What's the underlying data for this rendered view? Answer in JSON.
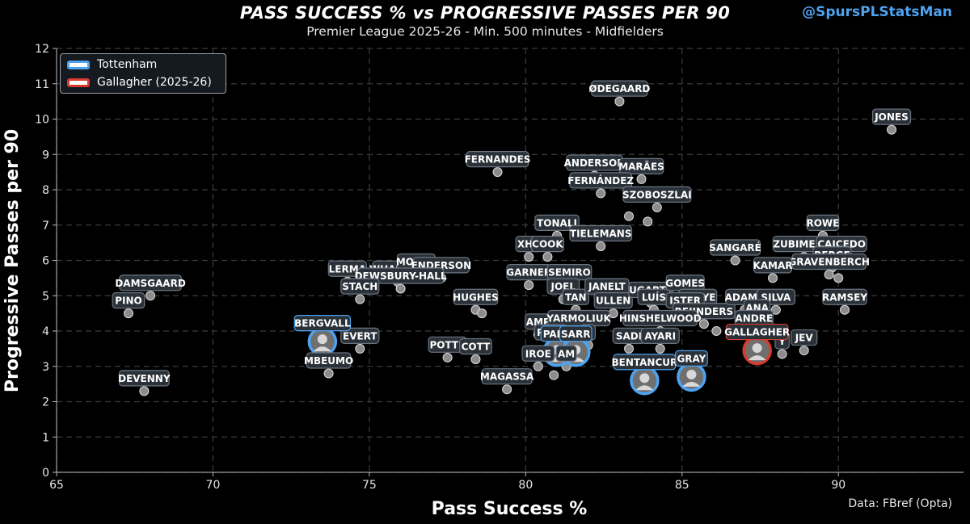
{
  "header": {
    "title": "PASS SUCCESS % vs PROGRESSIVE PASSES PER 90",
    "subtitle": "Premier League 2025-26 - Min. 500 minutes - Midfielders",
    "handle": "@SpursPLStatsMan",
    "source": "Data: FBref (Opta)"
  },
  "legend": [
    {
      "label": "Tottenham",
      "color": "#4da3f0"
    },
    {
      "label": "Gallagher (2025-26)",
      "color": "#d63b30"
    }
  ],
  "colors": {
    "background": "#000000",
    "point": "#8c8c8c",
    "tottenham": "#4da3f0",
    "gallagher": "#d63b30",
    "label_bg": "#2b3138"
  },
  "chart_data": {
    "type": "scatter",
    "title": "PASS SUCCESS % vs PROGRESSIVE PASSES PER 90",
    "subtitle": "Premier League 2025-26 - Min. 500 minutes - Midfielders",
    "xlabel": "Pass Success %",
    "ylabel": "Progressive Passes per 90",
    "xlim": [
      65,
      94
    ],
    "ylim": [
      0,
      12
    ],
    "xticks": [
      65,
      70,
      75,
      80,
      85,
      90
    ],
    "yticks": [
      0,
      1,
      2,
      3,
      4,
      5,
      6,
      7,
      8,
      9,
      10,
      11,
      12
    ],
    "grid": true,
    "legend_position": "top-left",
    "points": [
      {
        "label": "ØDEGAARD",
        "x": 83.0,
        "y": 10.5
      },
      {
        "label": "JONES",
        "x": 91.7,
        "y": 9.7
      },
      {
        "label": "FERNANDES",
        "x": 79.1,
        "y": 8.5
      },
      {
        "label": "ANDERSON",
        "x": 82.2,
        "y": 8.4
      },
      {
        "label": "MARÃES",
        "x": 83.7,
        "y": 8.3
      },
      {
        "label": "FERNÁNDEZ",
        "x": 82.4,
        "y": 7.9
      },
      {
        "label": "SZOBOSZLAI",
        "x": 84.2,
        "y": 7.5
      },
      {
        "label": "",
        "x": 83.3,
        "y": 7.25
      },
      {
        "label": "",
        "x": 83.9,
        "y": 7.1
      },
      {
        "label": "TONALI",
        "x": 81.0,
        "y": 6.7
      },
      {
        "label": "TIELEMANS",
        "x": 82.4,
        "y": 6.4
      },
      {
        "label": "XHA",
        "x": 80.1,
        "y": 6.1
      },
      {
        "label": "COOK",
        "x": 80.7,
        "y": 6.1
      },
      {
        "label": "ROWE",
        "x": 89.5,
        "y": 6.7
      },
      {
        "label": "SANGARÉ",
        "x": 86.7,
        "y": 6.0
      },
      {
        "label": "ZUBIMENDI",
        "x": 88.9,
        "y": 6.1
      },
      {
        "label": "CAICEDO",
        "x": 90.1,
        "y": 6.1
      },
      {
        "label": "BERGE",
        "x": 89.8,
        "y": 5.8
      },
      {
        "label": "GRAVENBERCH",
        "x": 89.7,
        "y": 5.6
      },
      {
        "label": "KAMAR",
        "x": 87.9,
        "y": 5.5
      },
      {
        "label": "",
        "x": 90.0,
        "y": 5.5
      },
      {
        "label": "WHARTON",
        "x": 75.9,
        "y": 5.4
      },
      {
        "label": "MOUNT",
        "x": 76.5,
        "y": 5.6
      },
      {
        "label": "LERMA",
        "x": 74.3,
        "y": 5.4
      },
      {
        "label": "ENDERSON",
        "x": 77.3,
        "y": 5.5
      },
      {
        "label": "DEWSBURY-HALL",
        "x": 76.0,
        "y": 5.2
      },
      {
        "label": "STACH",
        "x": 74.7,
        "y": 4.9
      },
      {
        "label": "GARNER",
        "x": 80.1,
        "y": 5.3
      },
      {
        "label": "SEMIRO",
        "x": 81.4,
        "y": 5.3
      },
      {
        "label": "DAMSGAARD",
        "x": 68.0,
        "y": 5.0
      },
      {
        "label": "PINO",
        "x": 67.3,
        "y": 4.5
      },
      {
        "label": "HUGHES",
        "x": 78.4,
        "y": 4.6
      },
      {
        "label": "",
        "x": 78.6,
        "y": 4.5
      },
      {
        "label": "JOEL",
        "x": 81.2,
        "y": 4.9
      },
      {
        "label": "TAN",
        "x": 81.6,
        "y": 4.6
      },
      {
        "label": "JANELT",
        "x": 82.6,
        "y": 4.9
      },
      {
        "label": "ULLEN",
        "x": 82.8,
        "y": 4.5
      },
      {
        "label": "UGARTE",
        "x": 84.0,
        "y": 4.8
      },
      {
        "label": "LUÍS",
        "x": 84.1,
        "y": 4.6
      },
      {
        "label": "GOMES",
        "x": 85.1,
        "y": 5.0
      },
      {
        "label": "GUEYE",
        "x": 85.5,
        "y": 4.6
      },
      {
        "label": "ISTER",
        "x": 85.1,
        "y": 4.5
      },
      {
        "label": "REIJNDERS",
        "x": 85.7,
        "y": 4.2
      },
      {
        "label": "ADAMS",
        "x": 87.0,
        "y": 4.6
      },
      {
        "label": "SILVA",
        "x": 88.0,
        "y": 4.6
      },
      {
        "label": "RAMSEY",
        "x": 90.2,
        "y": 4.6
      },
      {
        "label": "ANA",
        "x": 87.4,
        "y": 4.3
      },
      {
        "label": "ANDRE",
        "x": 87.3,
        "y": 4.0
      },
      {
        "label": "AMP",
        "x": 80.4,
        "y": 3.9
      },
      {
        "label": "YARMOLIUK",
        "x": 81.7,
        "y": 4.0
      },
      {
        "label": "HINSHELWOOD",
        "x": 84.3,
        "y": 4.0
      },
      {
        "label": "PALH",
        "x": 80.8,
        "y": 3.6
      },
      {
        "label": "F",
        "x": 82.0,
        "y": 3.6
      },
      {
        "label": "SADI",
        "x": 83.3,
        "y": 3.5
      },
      {
        "label": "AYARI",
        "x": 84.3,
        "y": 3.5
      },
      {
        "label": "IROE",
        "x": 80.4,
        "y": 3.0
      },
      {
        "label": "AM",
        "x": 81.3,
        "y": 3.0
      },
      {
        "label": "POTTS",
        "x": 77.5,
        "y": 3.25
      },
      {
        "label": "COTT",
        "x": 78.4,
        "y": 3.2
      },
      {
        "label": "MAGASSA",
        "x": 79.4,
        "y": 2.35
      },
      {
        "label": "",
        "x": 80.9,
        "y": 2.75
      },
      {
        "label": "EVERT",
        "x": 74.7,
        "y": 3.5
      },
      {
        "label": "MBEUMO",
        "x": 73.7,
        "y": 2.8
      },
      {
        "label": "DEVENNY",
        "x": 67.8,
        "y": 2.3
      },
      {
        "label": "JEV",
        "x": 88.9,
        "y": 3.45
      },
      {
        "label": "Y",
        "x": 88.2,
        "y": 3.35
      },
      {
        "label": "",
        "x": 86.1,
        "y": 4.0
      }
    ],
    "tottenham": [
      {
        "label": "BERGVALL",
        "x": 73.5,
        "y": 3.7
      },
      {
        "label": "PALH",
        "x": 81.0,
        "y": 3.4
      },
      {
        "label": "SARR",
        "x": 81.6,
        "y": 3.4
      },
      {
        "label": "BENTANCUR",
        "x": 83.8,
        "y": 2.6
      },
      {
        "label": "GRAY",
        "x": 85.3,
        "y": 2.7
      }
    ],
    "highlight": [
      {
        "label": "GALLAGHER",
        "x": 87.4,
        "y": 3.45
      }
    ]
  }
}
